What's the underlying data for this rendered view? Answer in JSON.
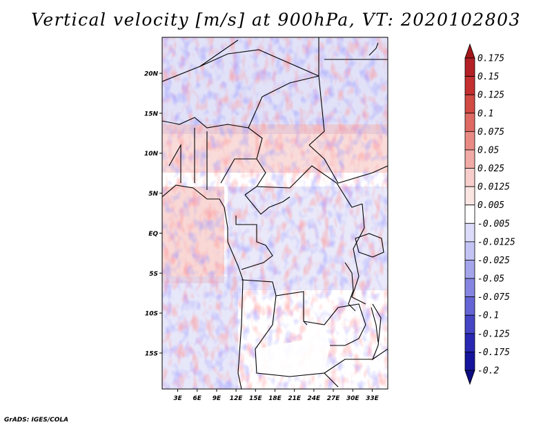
{
  "chart_data": {
    "type": "heatmap",
    "title": "Vertical velocity [m/s] at 900hPa, VT: 2020102803",
    "x_ticks": [
      "3E",
      "6E",
      "9E",
      "12E",
      "15E",
      "18E",
      "21E",
      "24E",
      "27E",
      "30E",
      "33E"
    ],
    "x_tick_values": [
      3,
      6,
      9,
      12,
      15,
      18,
      21,
      24,
      27,
      30,
      33
    ],
    "y_ticks": [
      "20N",
      "15N",
      "10N",
      "5N",
      "EQ",
      "5S",
      "10S",
      "15S"
    ],
    "y_tick_values": [
      20,
      15,
      10,
      5,
      0,
      -5,
      -10,
      -15
    ],
    "xlim": [
      0.6,
      35.4
    ],
    "ylim": [
      -19.5,
      24.5
    ],
    "colorbar": {
      "levels": [
        "0.175",
        "0.15",
        "0.125",
        "0.1",
        "0.075",
        "0.05",
        "0.025",
        "0.0125",
        "0.005",
        "-0.005",
        "-0.0125",
        "-0.025",
        "-0.05",
        "-0.075",
        "-0.1",
        "-0.125",
        "-0.175",
        "-0.2"
      ],
      "colors": [
        "#a3171b",
        "#b32026",
        "#c3302f",
        "#d24a44",
        "#df6a63",
        "#e98a84",
        "#f1aba6",
        "#f7cecb",
        "#fbe5e3",
        "#ffffff",
        "#dcdcfa",
        "#c3c3f4",
        "#a5a5ec",
        "#8686e2",
        "#6565d6",
        "#4545c6",
        "#2828b3",
        "#14149c",
        "#0c0c82"
      ]
    }
  },
  "credit": "GrADS: IGES/COLA"
}
